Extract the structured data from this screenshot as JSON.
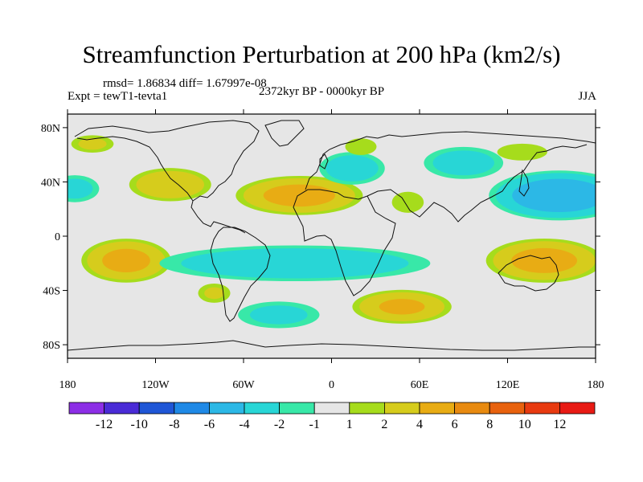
{
  "title": "Streamfunction Perturbation at 200 hPa (km2/s)",
  "stats": "rmsd= 1.86834 diff= 1.67997e-08",
  "experiment": "Expt = tewT1-tevta1",
  "period": "2372kyr BP - 0000kyr BP",
  "season": "JJA",
  "lat_labels": [
    "80N",
    "40N",
    "0",
    "40S",
    "80S"
  ],
  "lat_values": [
    80,
    40,
    0,
    -40,
    -80
  ],
  "lon_labels": [
    "180",
    "120W",
    "60W",
    "0",
    "60E",
    "120E",
    "180"
  ],
  "lon_values": [
    -180,
    -120,
    -60,
    0,
    60,
    120,
    180
  ],
  "colorbar": {
    "colors": [
      "#8c2ee6",
      "#4a2bd6",
      "#1f56d6",
      "#1f89e6",
      "#2cb8e6",
      "#28d6d6",
      "#38e8a8",
      "#e6e6e6",
      "#a6dc1c",
      "#d6cc1c",
      "#e8ac14",
      "#e88a10",
      "#e8620e",
      "#e83a10",
      "#e81a14"
    ],
    "labels": [
      "-12",
      "-10",
      "-8",
      "-6",
      "-4",
      "-2",
      "-1",
      "1",
      "2",
      "4",
      "6",
      "8",
      "10",
      "12"
    ]
  },
  "field_anomalies": [
    {
      "lon": -163,
      "lat": 68,
      "value": 2.2,
      "rlon": 18,
      "rlat": 8
    },
    {
      "lon": -110,
      "lat": 38,
      "value": 3.6,
      "rlon": 32,
      "rlat": 14
    },
    {
      "lon": -175,
      "lat": 35,
      "value": -2.6,
      "rlon": 20,
      "rlat": 12
    },
    {
      "lon": -140,
      "lat": -18,
      "value": 4.6,
      "rlon": 34,
      "rlat": 18
    },
    {
      "lon": -22,
      "lat": 30,
      "value": 4.8,
      "rlon": 48,
      "rlat": 16
    },
    {
      "lon": 14,
      "lat": 50,
      "value": -3.2,
      "rlon": 26,
      "rlat": 14
    },
    {
      "lon": 20,
      "lat": 66,
      "value": 1.8,
      "rlon": 14,
      "rlat": 8
    },
    {
      "lon": 52,
      "lat": 25,
      "value": 1.9,
      "rlon": 14,
      "rlat": 10
    },
    {
      "lon": 90,
      "lat": 54,
      "value": -2.9,
      "rlon": 32,
      "rlat": 14
    },
    {
      "lon": 155,
      "lat": 30,
      "value": -5.8,
      "rlon": 52,
      "rlat": 20
    },
    {
      "lon": 130,
      "lat": 62,
      "value": 1.9,
      "rlon": 22,
      "rlat": 8
    },
    {
      "lon": 145,
      "lat": -18,
      "value": 4.8,
      "rlon": 44,
      "rlat": 18
    },
    {
      "lon": -25,
      "lat": -20,
      "value": -3.8,
      "rlon": 105,
      "rlat": 15
    },
    {
      "lon": -80,
      "lat": -42,
      "value": 2.0,
      "rlon": 14,
      "rlat": 9
    },
    {
      "lon": -36,
      "lat": -58,
      "value": -2.4,
      "rlon": 34,
      "rlat": 12
    },
    {
      "lon": 48,
      "lat": -52,
      "value": 4.2,
      "rlon": 38,
      "rlat": 14
    }
  ]
}
